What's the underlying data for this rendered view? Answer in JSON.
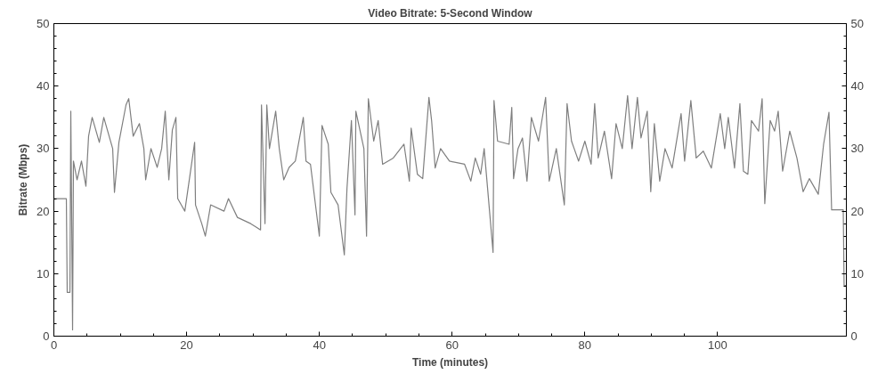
{
  "chart_data": {
    "type": "line",
    "title": "Video Bitrate: 5-Second Window",
    "xlabel": "Time (minutes)",
    "ylabel": "Bitrate (Mbps)",
    "xlim": [
      0,
      119.4
    ],
    "xticks": [
      0,
      20,
      40,
      60,
      80,
      100
    ],
    "ylim": [
      0,
      50
    ],
    "yticks": [
      0,
      10,
      20,
      30,
      40,
      50
    ],
    "y2lim": [
      0,
      50
    ],
    "y2ticks": [
      0,
      10,
      20,
      30,
      40,
      50
    ],
    "grid": false,
    "marker": "none",
    "line_style": "solid",
    "series": [
      {
        "color": "#7f7f7f",
        "x": [
          0,
          1.88,
          2.01,
          2.42,
          2.55,
          2.82,
          2.95,
          3.49,
          4.16,
          4.83,
          5.23,
          5.77,
          6.85,
          7.52,
          8.86,
          9.13,
          9.8,
          10.87,
          11.28,
          11.95,
          12.89,
          13.56,
          13.83,
          14.63,
          15.57,
          16.24,
          16.78,
          17.32,
          17.85,
          18.39,
          18.66,
          19.19,
          19.73,
          21.21,
          21.34,
          22.28,
          22.82,
          23.62,
          25.64,
          26.31,
          27.65,
          29.66,
          31.14,
          31.28,
          31.81,
          32.08,
          32.48,
          33.42,
          33.96,
          34.63,
          35.44,
          36.38,
          37.58,
          37.99,
          38.66,
          40.0,
          40.4,
          41.34,
          41.74,
          42.82,
          43.76,
          44.16,
          44.83,
          45.37,
          45.5,
          46.71,
          47.11,
          47.38,
          48.19,
          48.86,
          49.53,
          51.14,
          52.75,
          53.56,
          53.83,
          54.77,
          55.57,
          56.51,
          56.91,
          57.45,
          58.26,
          59.6,
          61.88,
          62.82,
          63.49,
          64.3,
          64.83,
          65.64,
          66.17,
          66.31,
          66.85,
          68.59,
          68.99,
          69.26,
          69.93,
          70.6,
          71.28,
          71.95,
          73.02,
          74.09,
          74.63,
          75.7,
          76.91,
          77.32,
          77.99,
          78.39,
          79.06,
          80.0,
          80.94,
          81.48,
          82.01,
          82.95,
          84.03,
          84.7,
          85.64,
          86.44,
          87.11,
          87.92,
          88.46,
          89.4,
          89.93,
          90.47,
          91.28,
          92.08,
          93.15,
          94.5,
          95.03,
          95.97,
          96.78,
          97.85,
          99.06,
          100.4,
          101.07,
          101.61,
          102.55,
          103.36,
          103.89,
          104.56,
          105.1,
          106.17,
          106.71,
          107.11,
          107.92,
          108.59,
          109.13,
          109.8,
          110.87,
          111.95,
          112.89,
          113.83,
          115.17,
          115.97,
          116.78,
          117.18,
          118.93,
          119.06,
          119.33
        ],
        "values": [
          22,
          22,
          7,
          7,
          36,
          1,
          28,
          25,
          28,
          24,
          32,
          35,
          31,
          35,
          30,
          23,
          31,
          37,
          38,
          32,
          34,
          30,
          25,
          30,
          27,
          30,
          36,
          25,
          33,
          35,
          22,
          21,
          20,
          31,
          21,
          18,
          16,
          21,
          20,
          22,
          19,
          18,
          17,
          37,
          18,
          37,
          30,
          36,
          30,
          25,
          27,
          28,
          35,
          28,
          27.5,
          16,
          33.7,
          30.7,
          23,
          21,
          13,
          23.6,
          34.5,
          19.4,
          36,
          30,
          16,
          38,
          31.2,
          34.5,
          27.5,
          28.5,
          30.7,
          24.8,
          33.3,
          25.9,
          25.2,
          38.2,
          34.5,
          26.9,
          30,
          28,
          27.5,
          24.8,
          28.5,
          25.9,
          30,
          20,
          13.4,
          37.7,
          31.2,
          30.7,
          36.6,
          25.2,
          30,
          31.7,
          24.8,
          35,
          31.2,
          38.2,
          24.8,
          30,
          21,
          37.2,
          31.2,
          30,
          28,
          31.2,
          27.5,
          37.2,
          28.5,
          32.8,
          25.2,
          34,
          30,
          38.5,
          30,
          38.2,
          31.7,
          36,
          23.1,
          34,
          24.8,
          30,
          26.9,
          35.6,
          28,
          37.7,
          28.5,
          29.6,
          26.9,
          35.6,
          30,
          35,
          26.9,
          37.2,
          26.4,
          25.9,
          34.5,
          32.8,
          38,
          21.2,
          34.5,
          32.8,
          36,
          26.4,
          32.8,
          28.5,
          23.1,
          25.2,
          22.7,
          30.7,
          35.8,
          20.2,
          20.2,
          8.1,
          8.1
        ]
      }
    ]
  }
}
